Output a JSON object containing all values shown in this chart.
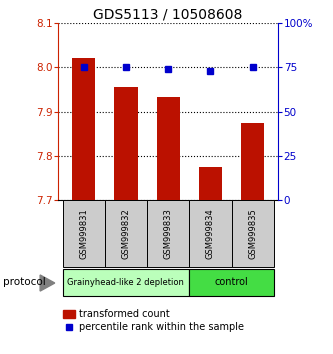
{
  "title": "GDS5113 / 10508608",
  "samples": [
    "GSM999831",
    "GSM999832",
    "GSM999833",
    "GSM999834",
    "GSM999835"
  ],
  "bar_values": [
    8.022,
    7.956,
    7.932,
    7.775,
    7.875
  ],
  "bar_bottom": 7.7,
  "percentile_values": [
    75,
    75,
    74,
    73,
    75
  ],
  "ylim_left": [
    7.7,
    8.1
  ],
  "ylim_right": [
    0,
    100
  ],
  "yticks_left": [
    7.7,
    7.8,
    7.9,
    8.0,
    8.1
  ],
  "yticks_right": [
    0,
    25,
    50,
    75,
    100
  ],
  "bar_color": "#bb1100",
  "dot_color": "#0000cc",
  "groups": [
    {
      "label": "Grainyhead-like 2 depletion",
      "indices": [
        0,
        1,
        2
      ],
      "color": "#bbffbb"
    },
    {
      "label": "control",
      "indices": [
        3,
        4
      ],
      "color": "#44dd44"
    }
  ],
  "protocol_label": "protocol",
  "legend_bar_label": "transformed count",
  "legend_dot_label": "percentile rank within the sample",
  "title_fontsize": 10,
  "axis_label_color_left": "#cc2200",
  "axis_label_color_right": "#0000cc",
  "bar_width": 0.55
}
